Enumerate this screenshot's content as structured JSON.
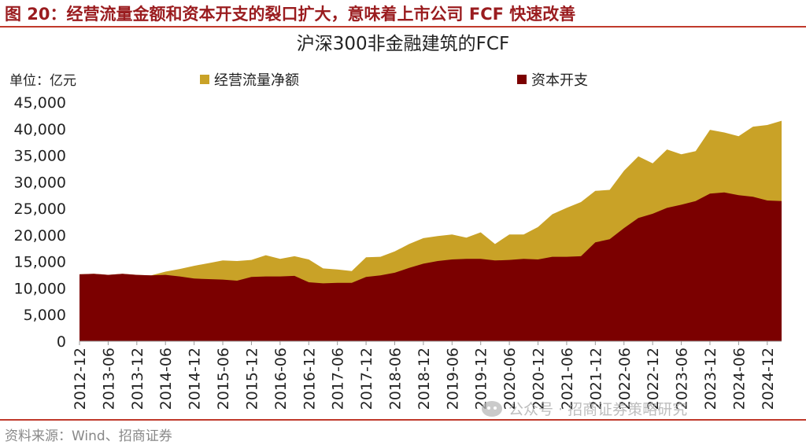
{
  "figure": {
    "title": "图 20：经营流量金额和资本开支的裂口扩大，意味着上市公司 FCF 快速改善",
    "source": "资料来源：Wind、招商证券",
    "watermark": "公众号 · 招商证券策略研究"
  },
  "colors": {
    "title": "#9a1c1f",
    "rule": "#c0392b",
    "ocf": "#c9a227",
    "capex": "#7b0000"
  },
  "chart_data": {
    "type": "area",
    "title": "沪深300非金融建筑的FCF",
    "unit_label": "单位：亿元",
    "legend_placement": "top",
    "grid": false,
    "ylim": [
      0,
      45000
    ],
    "y_ticks": [
      "0",
      "5,000",
      "10,000",
      "15,000",
      "20,000",
      "25,000",
      "30,000",
      "35,000",
      "40,000",
      "45,000"
    ],
    "y_tick_values": [
      0,
      5000,
      10000,
      15000,
      20000,
      25000,
      30000,
      35000,
      40000,
      45000
    ],
    "x_tick_labels": [
      "2012-12",
      "2013-06",
      "2013-12",
      "2014-06",
      "2014-12",
      "2015-06",
      "2015-12",
      "2016-06",
      "2016-12",
      "2017-06",
      "2017-12",
      "2018-06",
      "2018-12",
      "2019-06",
      "2019-12",
      "2020-06",
      "2020-12",
      "2021-06",
      "2021-12",
      "2022-06",
      "2022-12",
      "2023-06",
      "2023-12",
      "2024-06",
      "2024-12"
    ],
    "x": [
      "2012-12",
      "2013-03",
      "2013-06",
      "2013-09",
      "2013-12",
      "2014-03",
      "2014-06",
      "2014-09",
      "2014-12",
      "2015-03",
      "2015-06",
      "2015-09",
      "2015-12",
      "2016-03",
      "2016-06",
      "2016-09",
      "2016-12",
      "2017-03",
      "2017-06",
      "2017-09",
      "2017-12",
      "2018-03",
      "2018-06",
      "2018-09",
      "2018-12",
      "2019-03",
      "2019-06",
      "2019-09",
      "2019-12",
      "2020-03",
      "2020-06",
      "2020-09",
      "2020-12",
      "2021-03",
      "2021-06",
      "2021-09",
      "2021-12",
      "2022-03",
      "2022-06",
      "2022-09",
      "2022-12",
      "2023-03",
      "2023-06",
      "2023-09",
      "2023-12",
      "2024-03",
      "2024-06",
      "2024-09",
      "2024-12",
      "2025-03"
    ],
    "series": [
      {
        "name": "经营流量净额",
        "color": "#c9a227",
        "values": [
          12600,
          12700,
          12500,
          12700,
          12500,
          12400,
          13100,
          13600,
          14200,
          14700,
          15200,
          15100,
          15300,
          16200,
          15500,
          16000,
          15400,
          13700,
          13500,
          13200,
          15800,
          15900,
          16900,
          18300,
          19400,
          19800,
          20100,
          19500,
          20500,
          18300,
          20100,
          20100,
          21500,
          23900,
          25100,
          26200,
          28300,
          28500,
          32100,
          34800,
          33500,
          36100,
          35200,
          35800,
          39800,
          39300,
          38600,
          40400,
          40700,
          41500
        ]
      },
      {
        "name": "资本开支",
        "color": "#7b0000",
        "values": [
          12600,
          12700,
          12500,
          12700,
          12500,
          12400,
          12500,
          12200,
          11800,
          11700,
          11600,
          11400,
          12100,
          12200,
          12200,
          12300,
          11100,
          10900,
          11000,
          11000,
          12100,
          12400,
          12900,
          13800,
          14600,
          15100,
          15400,
          15500,
          15500,
          15200,
          15300,
          15500,
          15400,
          15900,
          15900,
          16000,
          18600,
          19200,
          21300,
          23200,
          24000,
          25100,
          25700,
          26400,
          27800,
          28000,
          27500,
          27200,
          26500,
          26400
        ]
      }
    ]
  }
}
